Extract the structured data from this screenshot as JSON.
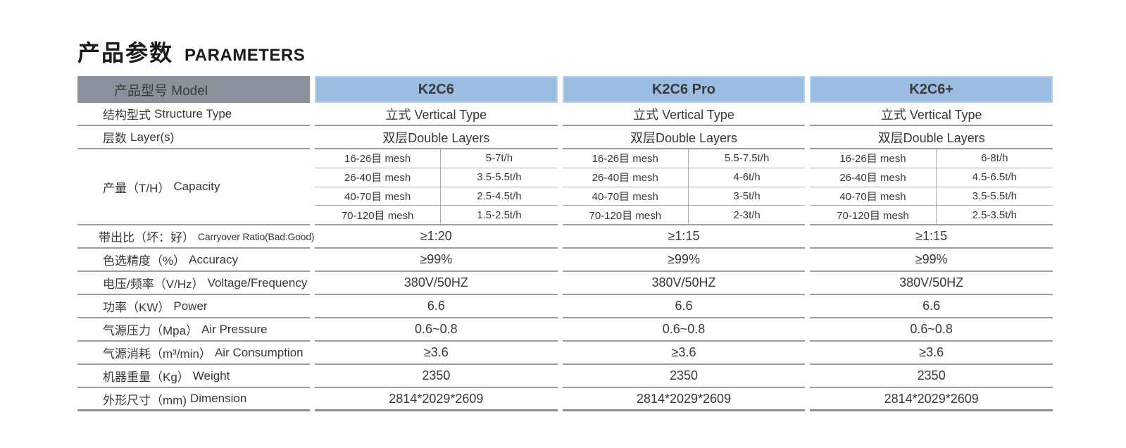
{
  "title": {
    "zh": "产品参数",
    "en": "PARAMETERS"
  },
  "colors": {
    "header_gray_bg": "#8a929c",
    "header_blue_bg": "#9cbde2",
    "row_line": "#9d9d9d",
    "capacity_sub_line": "#acacac",
    "table_bottom_line": "#8e8e8e",
    "text": "#3a3835"
  },
  "table": {
    "model_header": {
      "label": "产品型号 Model",
      "models": [
        "K2C6",
        "K2C6 Pro",
        "K2C6+"
      ]
    },
    "rows_top": [
      {
        "key": "structure-type",
        "zh": "结构型式",
        "en": "Structure Type",
        "values": [
          "立式 Vertical Type",
          "立式 Vertical Type",
          "立式 Vertical Type"
        ]
      },
      {
        "key": "layers",
        "zh": "层数",
        "en": "Layer(s)",
        "values": [
          "双层Double Layers",
          "双层Double Layers",
          "双层Double Layers"
        ]
      }
    ],
    "capacity": {
      "key": "capacity",
      "zh": "产量（T/H）",
      "en": "Capacity",
      "mesh_sizes": [
        "16-26目 mesh",
        "26-40目 mesh",
        "40-70目 mesh",
        "70-120目 mesh"
      ],
      "values": [
        [
          "5-7t/h",
          "3.5-5.5t/h",
          "2.5-4.5t/h",
          "1.5-2.5t/h"
        ],
        [
          "5.5-7.5t/h",
          "4-6t/h",
          "3-5t/h",
          "2-3t/h"
        ],
        [
          "6-8t/h",
          "4.5-6.5t/h",
          "3.5-5.5t/h",
          "2.5-3.5t/h"
        ]
      ]
    },
    "rows_bottom": [
      {
        "key": "carryover-ratio",
        "zh": "带出比（坏：好）",
        "en": "Carryover Ratio(Bad:Good)",
        "small_en": true,
        "values": [
          "≥1:20",
          "≥1:15",
          "≥1:15"
        ]
      },
      {
        "key": "accuracy",
        "zh": "色选精度（%）",
        "en": "Accuracy",
        "values": [
          "≥99%",
          "≥99%",
          "≥99%"
        ]
      },
      {
        "key": "voltage-frequency",
        "zh": "电压/频率（V/Hz）",
        "en": "Voltage/Frequency",
        "values": [
          "380V/50HZ",
          "380V/50HZ",
          "380V/50HZ"
        ]
      },
      {
        "key": "power",
        "zh": "功率（KW）",
        "en": "Power",
        "values": [
          "6.6",
          "6.6",
          "6.6"
        ]
      },
      {
        "key": "air-pressure",
        "zh": "气源压力（Mpa）",
        "en": "Air Pressure",
        "values": [
          "0.6~0.8",
          "0.6~0.8",
          "0.6~0.8"
        ]
      },
      {
        "key": "air-consumption",
        "zh": "气源消耗（m³/min）",
        "en": "Air Consumption",
        "values": [
          "≥3.6",
          "≥3.6",
          "≥3.6"
        ]
      },
      {
        "key": "weight",
        "zh": "机器重量（Kg）",
        "en": "Weight",
        "values": [
          "2350",
          "2350",
          "2350"
        ]
      },
      {
        "key": "dimension",
        "zh": "外形尺寸（mm)",
        "en": "Dimension",
        "values": [
          "2814*2029*2609",
          "2814*2029*2609",
          "2814*2029*2609"
        ]
      }
    ]
  }
}
